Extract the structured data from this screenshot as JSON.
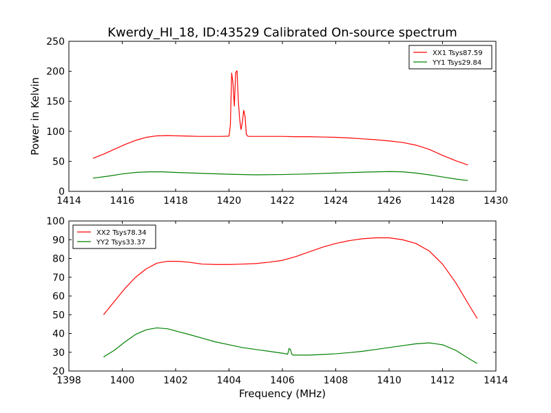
{
  "figure": {
    "title": "Kwerdy_HI_18, ID:43529 Calibrated On-source spectrum",
    "xlabel": "Frequency (MHz)"
  },
  "chart_data": [
    {
      "type": "line",
      "title": "Kwerdy_HI_18, ID:43529 Calibrated On-source spectrum",
      "xlabel": "",
      "ylabel": "Power in Kelvin",
      "xlim": [
        1414,
        1430
      ],
      "ylim": [
        0,
        250
      ],
      "xticks": [
        1414,
        1416,
        1418,
        1420,
        1422,
        1424,
        1426,
        1428,
        1430
      ],
      "yticks": [
        0,
        50,
        100,
        150,
        200,
        250
      ],
      "legend": "top-right",
      "grid": false,
      "series": [
        {
          "name": "XX1 Tsys87.59",
          "color": "#ff0000",
          "x": [
            1414.9,
            1415.3,
            1415.7,
            1416.1,
            1416.5,
            1416.9,
            1417.3,
            1417.7,
            1418.1,
            1418.5,
            1418.9,
            1419.3,
            1419.7,
            1420.0,
            1420.05,
            1420.1,
            1420.15,
            1420.2,
            1420.25,
            1420.3,
            1420.35,
            1420.4,
            1420.45,
            1420.5,
            1420.55,
            1420.6,
            1420.65,
            1420.7,
            1420.75,
            1420.8,
            1421.0,
            1421.5,
            1422.0,
            1422.5,
            1423.0,
            1423.5,
            1424.0,
            1424.5,
            1425.0,
            1425.5,
            1426.0,
            1426.5,
            1427.0,
            1427.5,
            1428.0,
            1428.5,
            1428.95
          ],
          "y": [
            55,
            62,
            70,
            78,
            85,
            90,
            92.5,
            93,
            92.5,
            92,
            91.5,
            91.5,
            91.5,
            92,
            110,
            197,
            180,
            142,
            198,
            201,
            150,
            120,
            103,
            115,
            135,
            125,
            95,
            92,
            91.5,
            91.5,
            91.5,
            91.5,
            91.5,
            91,
            91,
            90.5,
            90,
            89,
            87.5,
            86,
            84,
            81.5,
            77,
            70,
            60,
            51,
            44
          ]
        },
        {
          "name": "YY1 Tsys29.84",
          "color": "#008000",
          "x": [
            1414.9,
            1415.5,
            1416.0,
            1416.5,
            1417.0,
            1417.5,
            1418.0,
            1419.0,
            1420.0,
            1421.0,
            1422.0,
            1423.0,
            1424.0,
            1425.0,
            1426.0,
            1426.5,
            1427.0,
            1427.5,
            1428.0,
            1428.5,
            1428.95
          ],
          "y": [
            22,
            25.5,
            29,
            31.5,
            32.5,
            32.5,
            31.5,
            30,
            28.5,
            27.5,
            28,
            29,
            30.5,
            32,
            33,
            32.5,
            30.5,
            27.5,
            24,
            20.5,
            18
          ]
        }
      ]
    },
    {
      "type": "line",
      "title": "",
      "xlabel": "Frequency (MHz)",
      "ylabel": "",
      "xlim": [
        1398,
        1414
      ],
      "ylim": [
        20,
        100
      ],
      "xticks": [
        1398,
        1400,
        1402,
        1404,
        1406,
        1408,
        1410,
        1412,
        1414
      ],
      "yticks": [
        20,
        30,
        40,
        50,
        60,
        70,
        80,
        90,
        100
      ],
      "legend": "top-left",
      "grid": false,
      "series": [
        {
          "name": "XX2 Tsys78.34",
          "color": "#ff0000",
          "x": [
            1399.3,
            1399.7,
            1400.1,
            1400.5,
            1400.9,
            1401.3,
            1401.7,
            1402.1,
            1402.5,
            1403.0,
            1403.5,
            1404.0,
            1404.5,
            1405.0,
            1405.5,
            1406.0,
            1406.5,
            1407.0,
            1407.5,
            1408.0,
            1408.5,
            1409.0,
            1409.5,
            1410.0,
            1410.5,
            1411.0,
            1411.5,
            1412.0,
            1412.5,
            1413.0,
            1413.3
          ],
          "y": [
            50,
            57,
            64,
            70,
            74.5,
            77.5,
            78.5,
            78.5,
            78,
            77,
            76.8,
            76.8,
            77,
            77.3,
            78,
            79,
            81,
            83.5,
            86,
            88,
            89.5,
            90.5,
            91,
            91,
            90,
            88,
            84,
            77,
            67,
            55,
            48
          ]
        },
        {
          "name": "YY2 Tsys33.37",
          "color": "#008000",
          "x": [
            1399.3,
            1399.7,
            1400.1,
            1400.5,
            1400.9,
            1401.3,
            1401.7,
            1402.1,
            1402.5,
            1403.0,
            1403.5,
            1404.0,
            1404.5,
            1405.0,
            1405.5,
            1406.0,
            1406.2,
            1406.25,
            1406.3,
            1406.35,
            1406.4,
            1406.6,
            1407.0,
            1407.5,
            1408.0,
            1408.5,
            1409.0,
            1409.5,
            1410.0,
            1410.5,
            1411.0,
            1411.5,
            1412.0,
            1412.5,
            1413.0,
            1413.3
          ],
          "y": [
            27.5,
            31,
            35.5,
            39.5,
            42,
            43,
            42.5,
            41,
            39.5,
            37.5,
            35.5,
            34,
            32.5,
            31.5,
            30.5,
            29.5,
            29,
            32,
            31.5,
            29,
            28.5,
            28.5,
            28.5,
            28.8,
            29.2,
            29.8,
            30.5,
            31.5,
            32.5,
            33.5,
            34.5,
            35,
            34,
            31,
            26.5,
            24
          ]
        }
      ]
    }
  ]
}
